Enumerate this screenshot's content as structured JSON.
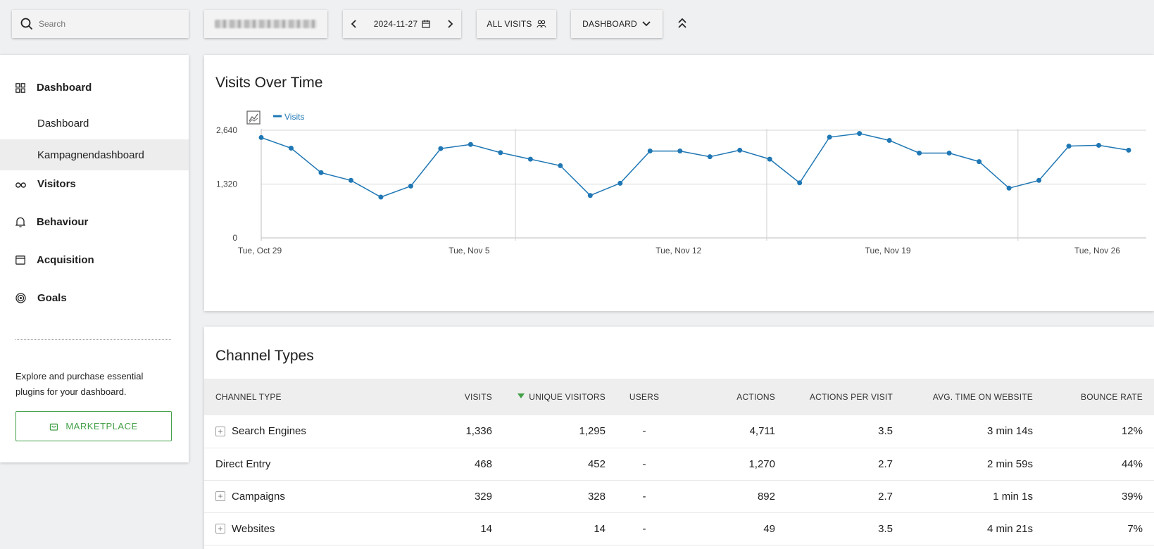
{
  "topbar": {
    "search_placeholder": "Search",
    "date": "2024-11-27",
    "segment_label": "ALL VISITS",
    "dashboard_label": "DASHBOARD"
  },
  "sidebar": {
    "categories": [
      {
        "label": "Dashboard",
        "icon": "grid-icon"
      },
      {
        "label": "Visitors",
        "icon": "binoculars-icon"
      },
      {
        "label": "Behaviour",
        "icon": "bell-icon"
      },
      {
        "label": "Acquisition",
        "icon": "window-icon"
      },
      {
        "label": "Goals",
        "icon": "target-icon"
      }
    ],
    "subitems": [
      {
        "label": "Dashboard",
        "active": false
      },
      {
        "label": "Kampagnendashboard",
        "active": true
      }
    ],
    "promo_text": "Explore and purchase essential plugins for your dashboard.",
    "marketplace_label": "MARKETPLACE"
  },
  "visits_chart": {
    "title": "Visits Over Time",
    "chart_data": {
      "type": "line",
      "series": [
        {
          "name": "Visits",
          "color": "#1f77b4",
          "values": [
            2460,
            2200,
            1600,
            1410,
            1000,
            1270,
            2190,
            2290,
            2090,
            1930,
            1770,
            1040,
            1340,
            2130,
            2130,
            1990,
            2150,
            1930,
            1350,
            2470,
            2560,
            2390,
            2080,
            2080,
            1870,
            1220,
            1410,
            2250,
            2270,
            2150
          ]
        }
      ],
      "x": [
        "2024-10-29",
        "2024-10-30",
        "2024-10-31",
        "2024-11-01",
        "2024-11-02",
        "2024-11-03",
        "2024-11-04",
        "2024-11-05",
        "2024-11-06",
        "2024-11-07",
        "2024-11-08",
        "2024-11-09",
        "2024-11-10",
        "2024-11-11",
        "2024-11-12",
        "2024-11-13",
        "2024-11-14",
        "2024-11-15",
        "2024-11-16",
        "2024-11-17",
        "2024-11-18",
        "2024-11-19",
        "2024-11-20",
        "2024-11-21",
        "2024-11-22",
        "2024-11-23",
        "2024-11-24",
        "2024-11-25",
        "2024-11-26",
        "2024-11-27"
      ],
      "x_tick_labels": [
        "Tue, Oct 29",
        "Tue, Nov 5",
        "Tue, Nov 12",
        "Tue, Nov 19",
        "Tue, Nov 26"
      ],
      "y_ticks": [
        0,
        1320,
        2640
      ],
      "y_tick_labels": [
        "0",
        "1,320",
        "2,640"
      ],
      "ylim": [
        0,
        2640
      ],
      "legend": "top-left",
      "grid": true
    }
  },
  "channel_table": {
    "title": "Channel Types",
    "columns": [
      "CHANNEL TYPE",
      "VISITS",
      "UNIQUE VISITORS",
      "USERS",
      "ACTIONS",
      "ACTIONS PER VISIT",
      "AVG. TIME ON WEBSITE",
      "BOUNCE RATE"
    ],
    "sorted_column": "UNIQUE VISITORS",
    "rows": [
      {
        "label": "Search Engines",
        "expandable": true,
        "visits": "1,336",
        "unique": "1,295",
        "users": "-",
        "actions": "4,711",
        "apv": "3.5",
        "avg_time": "3 min 14s",
        "bounce": "12%"
      },
      {
        "label": "Direct Entry",
        "expandable": false,
        "visits": "468",
        "unique": "452",
        "users": "-",
        "actions": "1,270",
        "apv": "2.7",
        "avg_time": "2 min 59s",
        "bounce": "44%"
      },
      {
        "label": "Campaigns",
        "expandable": true,
        "visits": "329",
        "unique": "328",
        "users": "-",
        "actions": "892",
        "apv": "2.7",
        "avg_time": "1 min 1s",
        "bounce": "39%"
      },
      {
        "label": "Websites",
        "expandable": true,
        "visits": "14",
        "unique": "14",
        "users": "-",
        "actions": "49",
        "apv": "3.5",
        "avg_time": "4 min 21s",
        "bounce": "7%"
      }
    ]
  }
}
